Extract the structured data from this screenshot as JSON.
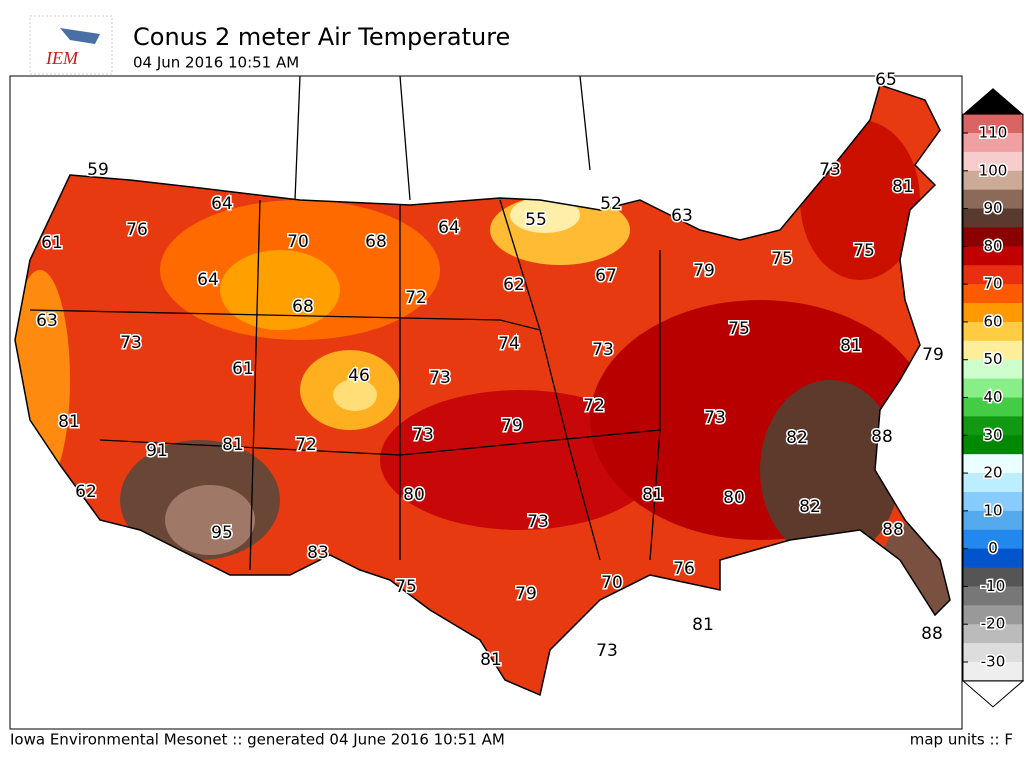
{
  "header": {
    "logo": "IEM",
    "title": "Conus 2 meter Air Temperature",
    "subtitle": "04 Jun 2016 10:51 AM"
  },
  "map": {
    "labels": [
      65,
      59,
      76,
      61,
      64,
      70,
      68,
      64,
      55,
      52,
      63,
      73,
      81,
      64,
      68,
      72,
      62,
      67,
      79,
      75,
      75,
      63,
      73,
      74,
      73,
      75,
      81,
      79,
      61,
      46,
      73,
      72,
      81,
      79,
      73,
      82,
      88,
      91,
      81,
      72,
      73,
      62,
      80,
      81,
      80,
      82,
      88,
      95,
      73,
      83,
      76,
      70,
      75,
      79,
      81,
      73,
      88,
      81
    ]
  },
  "colorbar": {
    "ticks": [
      110,
      100,
      90,
      80,
      70,
      60,
      50,
      40,
      30,
      20,
      10,
      0,
      -10,
      -20,
      -30
    ]
  },
  "footer": {
    "left": "Iowa Environmental Mesonet :: generated 04 June 2016 10:51 AM",
    "right": "map units :: F"
  }
}
